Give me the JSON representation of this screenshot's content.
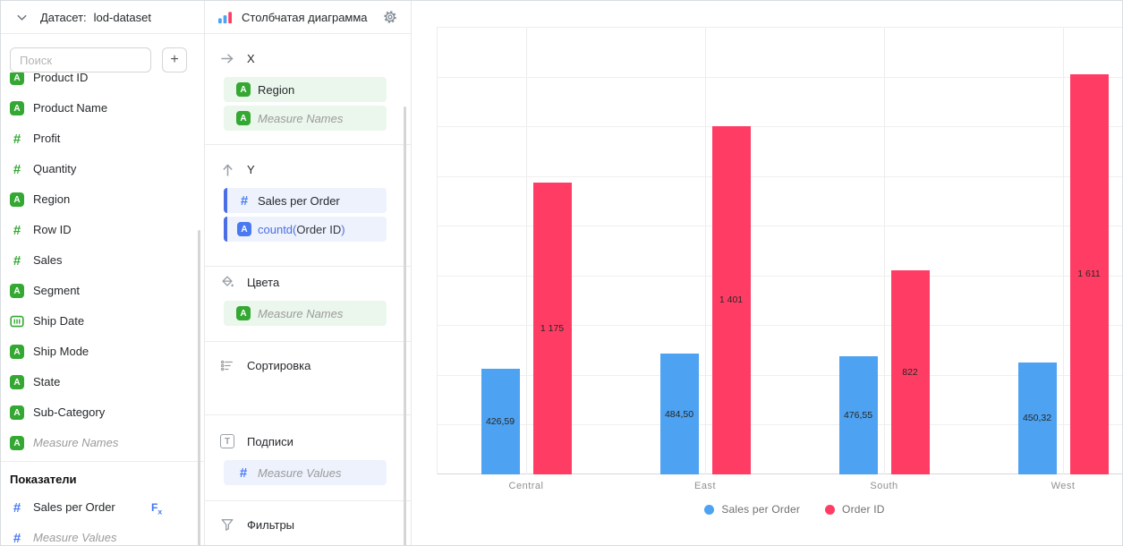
{
  "accent_colors": {
    "series_blue": "#4DA2F1",
    "series_red": "#FF3D64",
    "field_green": "#34A832",
    "field_blue": "#4A7AF2",
    "formula_blue": "#4C6EE4"
  },
  "dataset_panel": {
    "header_label": "Датасет:",
    "dataset_name": "lod-dataset",
    "search_placeholder": "Поиск",
    "add_button_label": "+",
    "fields": [
      {
        "label": "Product ID",
        "type": "string"
      },
      {
        "label": "Product Name",
        "type": "string"
      },
      {
        "label": "Profit",
        "type": "number"
      },
      {
        "label": "Quantity",
        "type": "number"
      },
      {
        "label": "Region",
        "type": "string"
      },
      {
        "label": "Row ID",
        "type": "number"
      },
      {
        "label": "Sales",
        "type": "number"
      },
      {
        "label": "Segment",
        "type": "string"
      },
      {
        "label": "Ship Date",
        "type": "date"
      },
      {
        "label": "Ship Mode",
        "type": "string"
      },
      {
        "label": "State",
        "type": "string"
      },
      {
        "label": "Sub-Category",
        "type": "string"
      },
      {
        "label": "Measure Names",
        "type": "string",
        "italic": true
      }
    ],
    "measures_header": "Показатели",
    "measures": [
      {
        "label": "Sales per Order",
        "type": "number",
        "formula": true
      },
      {
        "label": "Measure Values",
        "type": "number",
        "italic": true
      }
    ]
  },
  "config_panel": {
    "chart_type_label": "Столбчатая диаграмма",
    "sections": [
      {
        "label": "X",
        "items": [
          {
            "label": "Region",
            "type": "string",
            "tint": "green"
          },
          {
            "label": "Measure Names",
            "type": "string",
            "tint": "green",
            "italic": true
          }
        ]
      },
      {
        "label": "Y",
        "items": [
          {
            "label": "Sales per Order",
            "type": "number",
            "tint": "blue",
            "stripe": true
          },
          {
            "parts": {
              "prefix": "countd(",
              "field": "Order ID",
              "suffix": ")"
            },
            "type": "string",
            "tint": "blue",
            "stripe": true
          }
        ]
      },
      {
        "label": "Цвета",
        "items": [
          {
            "label": "Measure Names",
            "type": "string",
            "tint": "green",
            "italic": true
          }
        ]
      },
      {
        "label": "Сортировка",
        "items": []
      },
      {
        "label": "Подписи",
        "items": [
          {
            "label": "Measure Values",
            "type": "number",
            "tint": "blue",
            "italic": true
          }
        ]
      },
      {
        "label": "Фильтры",
        "items": []
      }
    ]
  },
  "chart_data": {
    "type": "bar",
    "categories": [
      "Central",
      "East",
      "South",
      "West"
    ],
    "series": [
      {
        "name": "Sales per Order",
        "color": "#4DA2F1",
        "values": [
          426.59,
          484.5,
          476.55,
          450.32
        ],
        "labels": [
          "426,59",
          "484,50",
          "476,55",
          "450,32"
        ]
      },
      {
        "name": "Order ID",
        "color": "#FF3D64",
        "values": [
          1175,
          1401,
          822,
          1611
        ],
        "labels": [
          "1 175",
          "1 401",
          "822",
          "1 611"
        ]
      }
    ],
    "ylim": [
      0,
      1800
    ],
    "grid_step": 200,
    "y_axis_tick_labels": "hidden",
    "grid": "on",
    "value_labels_position": "inside-middle",
    "legend_position": "bottom-center"
  }
}
